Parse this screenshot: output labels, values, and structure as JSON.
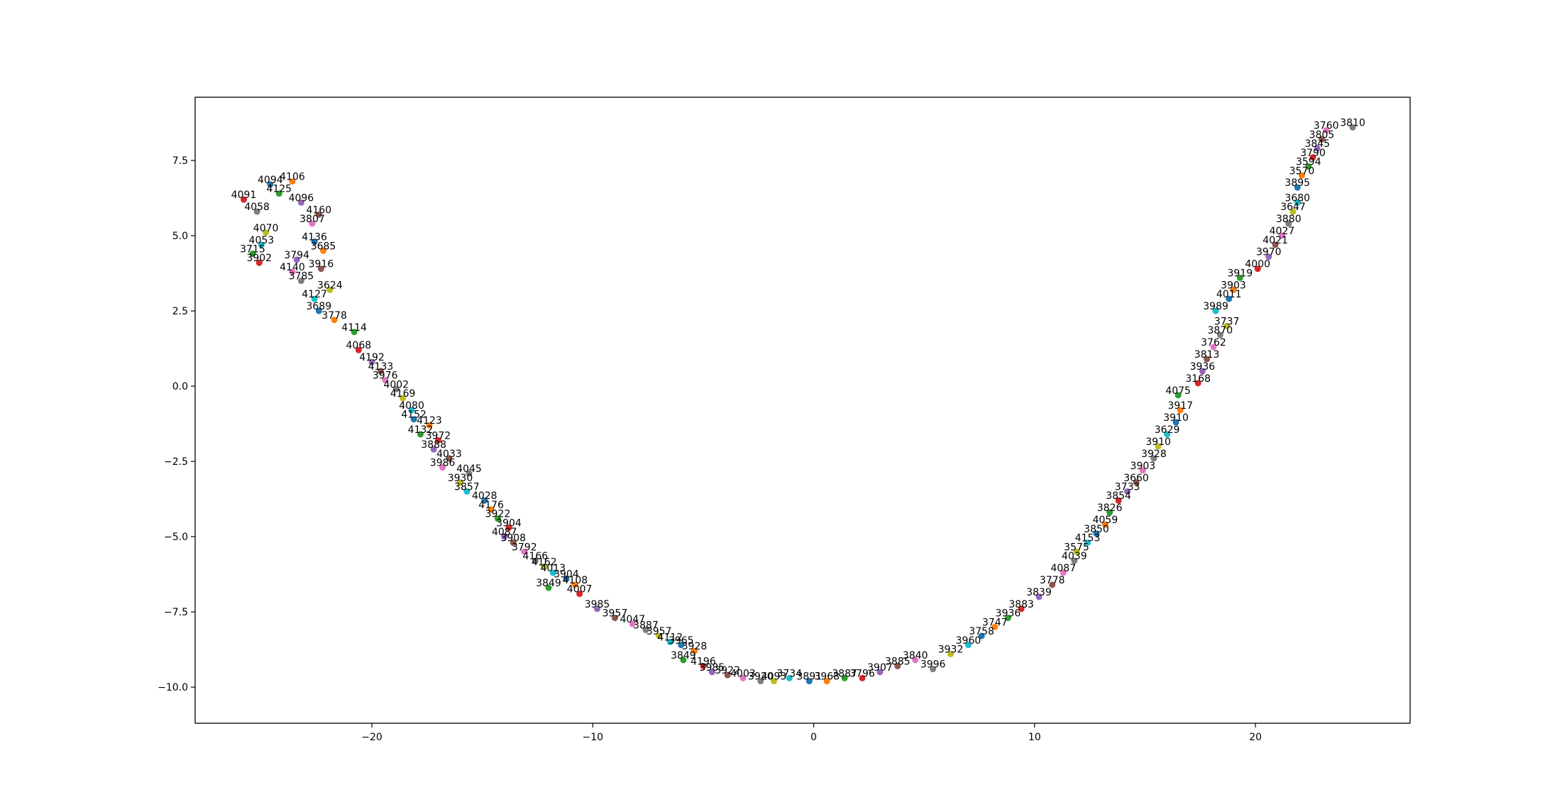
{
  "chart_data": {
    "type": "scatter",
    "title": "",
    "xlabel": "",
    "ylabel": "",
    "xlim": [
      -28,
      27
    ],
    "ylim": [
      -11.2,
      9.6
    ],
    "x_ticks": [
      -20,
      -10,
      0,
      10,
      20
    ],
    "x_tick_labels": [
      "−20",
      "−10",
      "0",
      "10",
      "20"
    ],
    "y_ticks": [
      -10.0,
      -7.5,
      -5.0,
      -2.5,
      0.0,
      2.5,
      5.0,
      7.5
    ],
    "y_tick_labels": [
      "−10.0",
      "−7.5",
      "−5.0",
      "−2.5",
      "0.0",
      "2.5",
      "5.0",
      "7.5"
    ],
    "grid": false,
    "legend": "none",
    "palette": [
      "#1f77b4",
      "#ff7f0e",
      "#2ca02c",
      "#d62728",
      "#9467bd",
      "#8c564b",
      "#e377c2",
      "#7f7f7f",
      "#bcbd22",
      "#17becf"
    ],
    "points": [
      {
        "x": -24.6,
        "y": 6.7,
        "label": "4094"
      },
      {
        "x": -23.6,
        "y": 6.8,
        "label": "4106"
      },
      {
        "x": -24.2,
        "y": 6.4,
        "label": "4125"
      },
      {
        "x": -25.8,
        "y": 6.2,
        "label": "4091"
      },
      {
        "x": -23.2,
        "y": 6.1,
        "label": "4096"
      },
      {
        "x": -22.4,
        "y": 5.7,
        "label": "4160"
      },
      {
        "x": -22.7,
        "y": 5.4,
        "label": "3807"
      },
      {
        "x": -25.2,
        "y": 5.8,
        "label": "4058"
      },
      {
        "x": -24.8,
        "y": 5.1,
        "label": "4070"
      },
      {
        "x": -25.0,
        "y": 4.7,
        "label": "4053"
      },
      {
        "x": -22.6,
        "y": 4.8,
        "label": "4136"
      },
      {
        "x": -22.2,
        "y": 4.5,
        "label": "3685"
      },
      {
        "x": -25.4,
        "y": 4.4,
        "label": "3715"
      },
      {
        "x": -25.1,
        "y": 4.1,
        "label": "3902"
      },
      {
        "x": -23.4,
        "y": 4.2,
        "label": "3794"
      },
      {
        "x": -22.3,
        "y": 3.9,
        "label": "3916"
      },
      {
        "x": -23.6,
        "y": 3.8,
        "label": "4140"
      },
      {
        "x": -23.2,
        "y": 3.5,
        "label": "3785"
      },
      {
        "x": -21.9,
        "y": 3.2,
        "label": "3624"
      },
      {
        "x": -22.6,
        "y": 2.9,
        "label": "4127"
      },
      {
        "x": -22.4,
        "y": 2.5,
        "label": "3689"
      },
      {
        "x": -21.7,
        "y": 2.2,
        "label": "3778"
      },
      {
        "x": -20.8,
        "y": 1.8,
        "label": "4114"
      },
      {
        "x": -20.6,
        "y": 1.2,
        "label": "4068"
      },
      {
        "x": -20.0,
        "y": 0.8,
        "label": "4192"
      },
      {
        "x": -19.6,
        "y": 0.5,
        "label": "4133"
      },
      {
        "x": -19.4,
        "y": 0.2,
        "label": "3976"
      },
      {
        "x": -18.9,
        "y": -0.1,
        "label": "4002"
      },
      {
        "x": -18.6,
        "y": -0.4,
        "label": "4169"
      },
      {
        "x": -18.2,
        "y": -0.8,
        "label": "4080"
      },
      {
        "x": -18.1,
        "y": -1.1,
        "label": "4152"
      },
      {
        "x": -17.4,
        "y": -1.3,
        "label": "4123"
      },
      {
        "x": -17.8,
        "y": -1.6,
        "label": "4132"
      },
      {
        "x": -17.0,
        "y": -1.8,
        "label": "3972"
      },
      {
        "x": -17.2,
        "y": -2.1,
        "label": "3888"
      },
      {
        "x": -16.5,
        "y": -2.4,
        "label": "4033"
      },
      {
        "x": -16.8,
        "y": -2.7,
        "label": "3986"
      },
      {
        "x": -15.6,
        "y": -2.9,
        "label": "4045"
      },
      {
        "x": -16.0,
        "y": -3.2,
        "label": "3930"
      },
      {
        "x": -15.7,
        "y": -3.5,
        "label": "3857"
      },
      {
        "x": -14.9,
        "y": -3.8,
        "label": "4028"
      },
      {
        "x": -14.6,
        "y": -4.1,
        "label": "4176"
      },
      {
        "x": -14.3,
        "y": -4.4,
        "label": "3922"
      },
      {
        "x": -13.8,
        "y": -4.7,
        "label": "3904"
      },
      {
        "x": -14.0,
        "y": -5.0,
        "label": "4087"
      },
      {
        "x": -13.6,
        "y": -5.2,
        "label": "3908"
      },
      {
        "x": -13.1,
        "y": -5.5,
        "label": "3792"
      },
      {
        "x": -12.6,
        "y": -5.8,
        "label": "4166"
      },
      {
        "x": -12.2,
        "y": -6.0,
        "label": "4162"
      },
      {
        "x": -11.8,
        "y": -6.2,
        "label": "4013"
      },
      {
        "x": -11.2,
        "y": -6.4,
        "label": "3904"
      },
      {
        "x": -10.8,
        "y": -6.6,
        "label": "4108"
      },
      {
        "x": -12.0,
        "y": -6.7,
        "label": "3849"
      },
      {
        "x": -10.6,
        "y": -6.9,
        "label": "4007"
      },
      {
        "x": -9.8,
        "y": -7.4,
        "label": "3985"
      },
      {
        "x": -9.0,
        "y": -7.7,
        "label": "3957"
      },
      {
        "x": -8.2,
        "y": -7.9,
        "label": "4047"
      },
      {
        "x": -7.6,
        "y": -8.1,
        "label": "3887"
      },
      {
        "x": -7.0,
        "y": -8.3,
        "label": "3957"
      },
      {
        "x": -6.5,
        "y": -8.5,
        "label": "4112"
      },
      {
        "x": -6.0,
        "y": -8.6,
        "label": "3965"
      },
      {
        "x": -5.4,
        "y": -8.8,
        "label": "3928"
      },
      {
        "x": -5.9,
        "y": -9.1,
        "label": "3849"
      },
      {
        "x": -5.0,
        "y": -9.3,
        "label": "4196"
      },
      {
        "x": -4.6,
        "y": -9.5,
        "label": "3985"
      },
      {
        "x": -3.9,
        "y": -9.6,
        "label": "3922"
      },
      {
        "x": -3.2,
        "y": -9.7,
        "label": "4003"
      },
      {
        "x": -2.4,
        "y": -9.8,
        "label": "3920"
      },
      {
        "x": -1.8,
        "y": -9.8,
        "label": "4093"
      },
      {
        "x": -1.1,
        "y": -9.7,
        "label": "3734"
      },
      {
        "x": -0.2,
        "y": -9.8,
        "label": "3891"
      },
      {
        "x": 0.6,
        "y": -9.8,
        "label": "3968"
      },
      {
        "x": 1.4,
        "y": -9.7,
        "label": "3887"
      },
      {
        "x": 2.2,
        "y": -9.7,
        "label": "3796"
      },
      {
        "x": 3.0,
        "y": -9.5,
        "label": "3907"
      },
      {
        "x": 3.8,
        "y": -9.3,
        "label": "3885"
      },
      {
        "x": 4.6,
        "y": -9.1,
        "label": "3840"
      },
      {
        "x": 5.4,
        "y": -9.4,
        "label": "3996"
      },
      {
        "x": 6.2,
        "y": -8.9,
        "label": "3932"
      },
      {
        "x": 7.0,
        "y": -8.6,
        "label": "3960"
      },
      {
        "x": 7.6,
        "y": -8.3,
        "label": "3758"
      },
      {
        "x": 8.2,
        "y": -8.0,
        "label": "3747"
      },
      {
        "x": 8.8,
        "y": -7.7,
        "label": "3936"
      },
      {
        "x": 9.4,
        "y": -7.4,
        "label": "3883"
      },
      {
        "x": 10.2,
        "y": -7.0,
        "label": "3839"
      },
      {
        "x": 10.8,
        "y": -6.6,
        "label": "3778"
      },
      {
        "x": 11.3,
        "y": -6.2,
        "label": "4087"
      },
      {
        "x": 11.8,
        "y": -5.8,
        "label": "4039"
      },
      {
        "x": 11.9,
        "y": -5.5,
        "label": "3575"
      },
      {
        "x": 12.4,
        "y": -5.2,
        "label": "4153"
      },
      {
        "x": 12.8,
        "y": -4.9,
        "label": "3850"
      },
      {
        "x": 13.2,
        "y": -4.6,
        "label": "4059"
      },
      {
        "x": 13.4,
        "y": -4.2,
        "label": "3826"
      },
      {
        "x": 13.8,
        "y": -3.8,
        "label": "3854"
      },
      {
        "x": 14.2,
        "y": -3.5,
        "label": "3733"
      },
      {
        "x": 14.6,
        "y": -3.2,
        "label": "3660"
      },
      {
        "x": 14.9,
        "y": -2.8,
        "label": "3903"
      },
      {
        "x": 15.4,
        "y": -2.4,
        "label": "3928"
      },
      {
        "x": 15.6,
        "y": -2.0,
        "label": "3910"
      },
      {
        "x": 16.0,
        "y": -1.6,
        "label": "3629"
      },
      {
        "x": 16.4,
        "y": -1.2,
        "label": "3910"
      },
      {
        "x": 16.6,
        "y": -0.8,
        "label": "3917"
      },
      {
        "x": 16.5,
        "y": -0.3,
        "label": "4075"
      },
      {
        "x": 17.4,
        "y": 0.1,
        "label": "3168"
      },
      {
        "x": 17.6,
        "y": 0.5,
        "label": "3936"
      },
      {
        "x": 17.8,
        "y": 0.9,
        "label": "3813"
      },
      {
        "x": 18.1,
        "y": 1.3,
        "label": "3762"
      },
      {
        "x": 18.4,
        "y": 1.7,
        "label": "3870"
      },
      {
        "x": 18.7,
        "y": 2.0,
        "label": "3737"
      },
      {
        "x": 18.2,
        "y": 2.5,
        "label": "3989"
      },
      {
        "x": 18.8,
        "y": 2.9,
        "label": "4011"
      },
      {
        "x": 19.0,
        "y": 3.2,
        "label": "3903"
      },
      {
        "x": 19.3,
        "y": 3.6,
        "label": "3919"
      },
      {
        "x": 20.1,
        "y": 3.9,
        "label": "4000"
      },
      {
        "x": 20.6,
        "y": 4.3,
        "label": "3970"
      },
      {
        "x": 20.9,
        "y": 4.7,
        "label": "4021"
      },
      {
        "x": 21.2,
        "y": 5.0,
        "label": "4027"
      },
      {
        "x": 21.5,
        "y": 5.4,
        "label": "3880"
      },
      {
        "x": 21.7,
        "y": 5.8,
        "label": "3647"
      },
      {
        "x": 21.9,
        "y": 6.1,
        "label": "3680"
      },
      {
        "x": 21.9,
        "y": 6.6,
        "label": "3895"
      },
      {
        "x": 22.1,
        "y": 7.0,
        "label": "3570"
      },
      {
        "x": 22.4,
        "y": 7.3,
        "label": "3594"
      },
      {
        "x": 22.6,
        "y": 7.6,
        "label": "3790"
      },
      {
        "x": 22.8,
        "y": 7.9,
        "label": "3845"
      },
      {
        "x": 23.0,
        "y": 8.2,
        "label": "3805"
      },
      {
        "x": 23.2,
        "y": 8.5,
        "label": "3760"
      },
      {
        "x": 24.4,
        "y": 8.6,
        "label": "3810"
      }
    ]
  }
}
